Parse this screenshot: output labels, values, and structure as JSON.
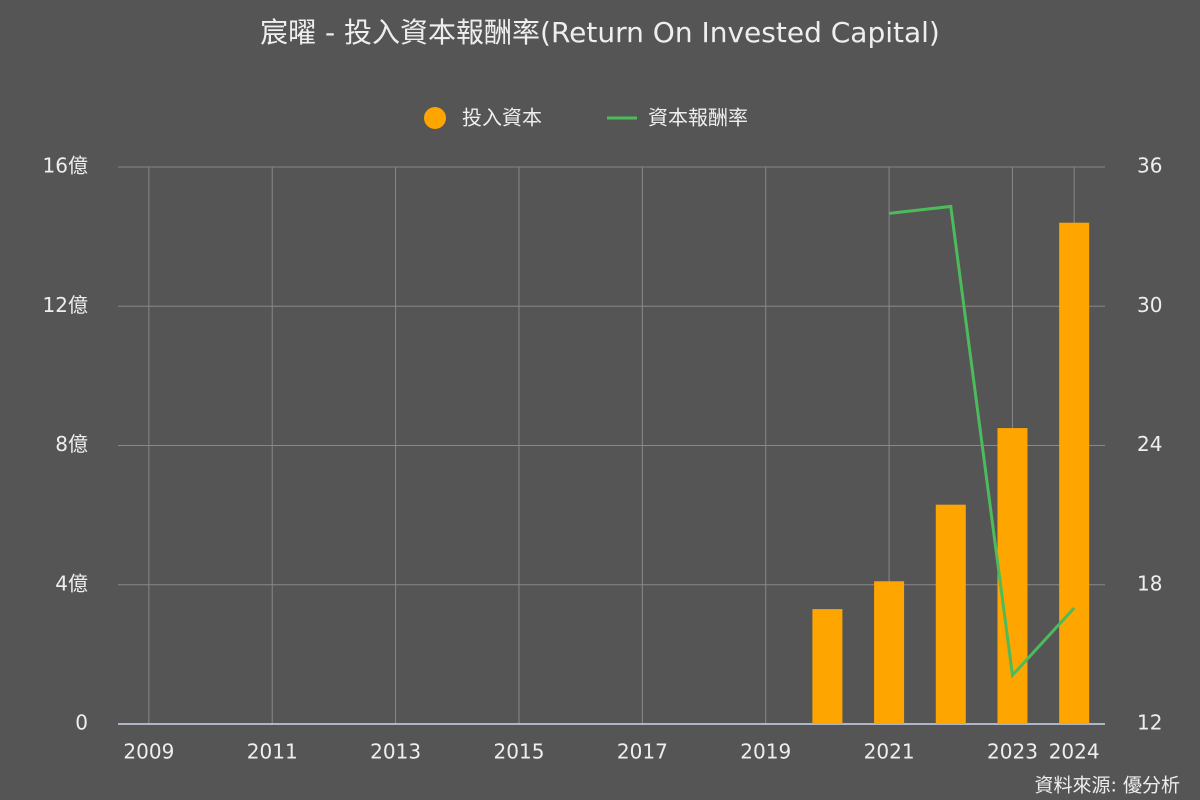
{
  "chart_data": {
    "type": "bar-line",
    "title": "宸曜 - 投入資本報酬率(Return On Invested Capital)",
    "x": [
      2020,
      2021,
      2022,
      2023,
      2024
    ],
    "xlim": [
      2008.5,
      2024.5
    ],
    "xticks": [
      2009,
      2011,
      2013,
      2015,
      2017,
      2019,
      2021,
      2023,
      2024
    ],
    "series": [
      {
        "name": "投入資本",
        "type": "bar",
        "color": "#ffa500",
        "axis": "y",
        "values": [
          3.3,
          4.1,
          6.3,
          8.5,
          14.4
        ]
      },
      {
        "name": "資本報酬率",
        "type": "line",
        "color": "#4cbb5c",
        "axis": "y2",
        "values": [
          null,
          34.0,
          34.3,
          14.1,
          17.0
        ]
      }
    ],
    "ylim": [
      0,
      16
    ],
    "yticks": [
      0,
      {
        "value": 4,
        "label": "4億"
      },
      {
        "value": 8,
        "label": "8億"
      },
      {
        "value": 12,
        "label": "12億"
      },
      {
        "value": 16,
        "label": "16億"
      }
    ],
    "y2lim": [
      12,
      36
    ],
    "y2ticks": [
      12,
      18,
      24,
      30,
      36
    ],
    "grid": true,
    "source": "資料來源: 優分析"
  }
}
